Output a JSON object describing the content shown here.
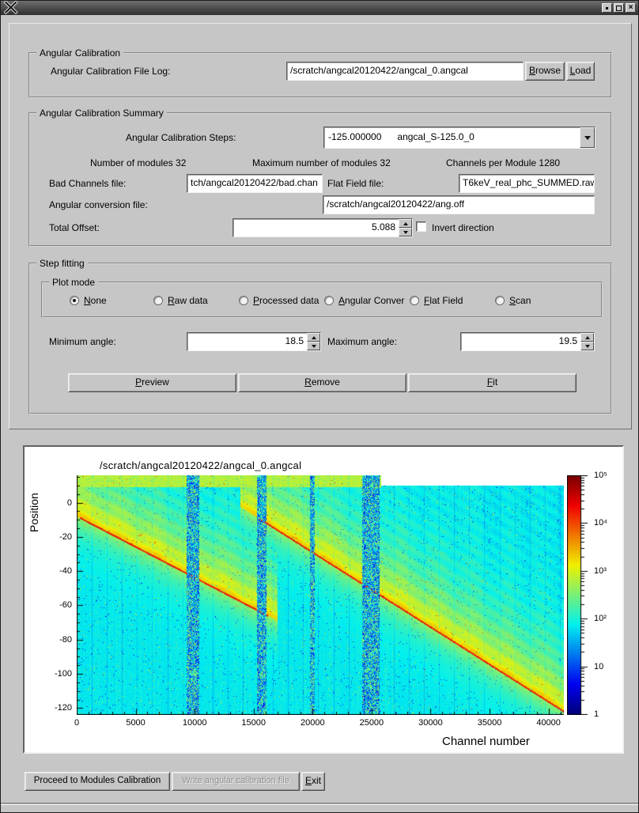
{
  "icons": {
    "cursor_glyph": "×",
    "close_glyph": "×"
  },
  "angular_calibration": {
    "legend": "Angular Calibration",
    "file_log_label": "Angular Calibration File Log:",
    "file_log_value": "/scratch/angcal20120422/angcal_0.angcal",
    "browse_label": "Browse",
    "load_label": "Load"
  },
  "summary": {
    "legend": "Angular Calibration Summary",
    "steps_label": "Angular Calibration Steps:",
    "steps_value": "-125.000000      angcal_S-125.0_0",
    "num_modules": "Number of modules 32",
    "max_modules": "Maximum number of modules 32",
    "channels_per_module": "Channels per Module 1280",
    "bad_channels_label": "Bad Channels file:",
    "bad_channels_value": "tch/angcal20120422/bad.chan",
    "flat_field_label": "Flat Field file:",
    "flat_field_value": "T6keV_real_phc_SUMMED.raw",
    "ang_conv_label": "Angular conversion file:",
    "ang_conv_value": "/scratch/angcal20120422/ang.off",
    "total_offset_label": "Total Offset:",
    "total_offset_value": "5.088",
    "invert_label": "Invert direction",
    "invert_checked": false
  },
  "step_fitting": {
    "legend": "Step fitting",
    "plot_mode": {
      "legend": "Plot mode",
      "options": [
        {
          "label": "None",
          "selected": true
        },
        {
          "label": "Raw data",
          "selected": false
        },
        {
          "label": "Processed data",
          "selected": false
        },
        {
          "label": "Angular Conver",
          "selected": false
        },
        {
          "label": "Flat Field",
          "selected": false
        },
        {
          "label": "Scan",
          "selected": false
        }
      ]
    },
    "min_angle_label": "Minimum angle:",
    "min_angle_value": "18.5",
    "max_angle_label": "Maximum angle:",
    "max_angle_value": "19.5",
    "preview_label": "Preview",
    "remove_label": "Remove",
    "fit_label": "Fit"
  },
  "footer": {
    "proceed_label": "Proceed to Modules Calibration",
    "write_label": "Write angular calibration file",
    "write_enabled": false,
    "exit_label": "Exit"
  },
  "chart_data": {
    "type": "heatmap",
    "title": "/scratch/angcal20120422/angcal_0.angcal",
    "xlabel": "Channel number",
    "ylabel": "Position",
    "x_range": [
      0,
      41300
    ],
    "y_range": [
      -124,
      16
    ],
    "x_ticks": [
      0,
      5000,
      10000,
      15000,
      20000,
      25000,
      30000,
      35000,
      40000
    ],
    "y_ticks": [
      0,
      -20,
      -40,
      -60,
      -80,
      -100,
      -120
    ],
    "colorbar": {
      "scale": "log",
      "min": 1,
      "max": 100000,
      "tick_labels": [
        "1",
        "10",
        "10²",
        "10³",
        "10⁴",
        "10⁵"
      ],
      "colormap": "jet"
    },
    "features": {
      "beam_tracks": [
        {
          "from": [
            300,
            -9
          ],
          "to": [
            16200,
            -66
          ]
        },
        {
          "from": [
            15400,
            -9
          ],
          "to": [
            41300,
            -122
          ]
        }
      ],
      "noisy_channel_bands": [
        [
          9300,
          10400
        ],
        [
          15300,
          16100
        ],
        [
          19800,
          20150
        ],
        [
          24200,
          25700
        ]
      ],
      "blank_region": {
        "channel_min": 25800,
        "position_min": 10
      },
      "module_size_channels": 1280
    }
  }
}
